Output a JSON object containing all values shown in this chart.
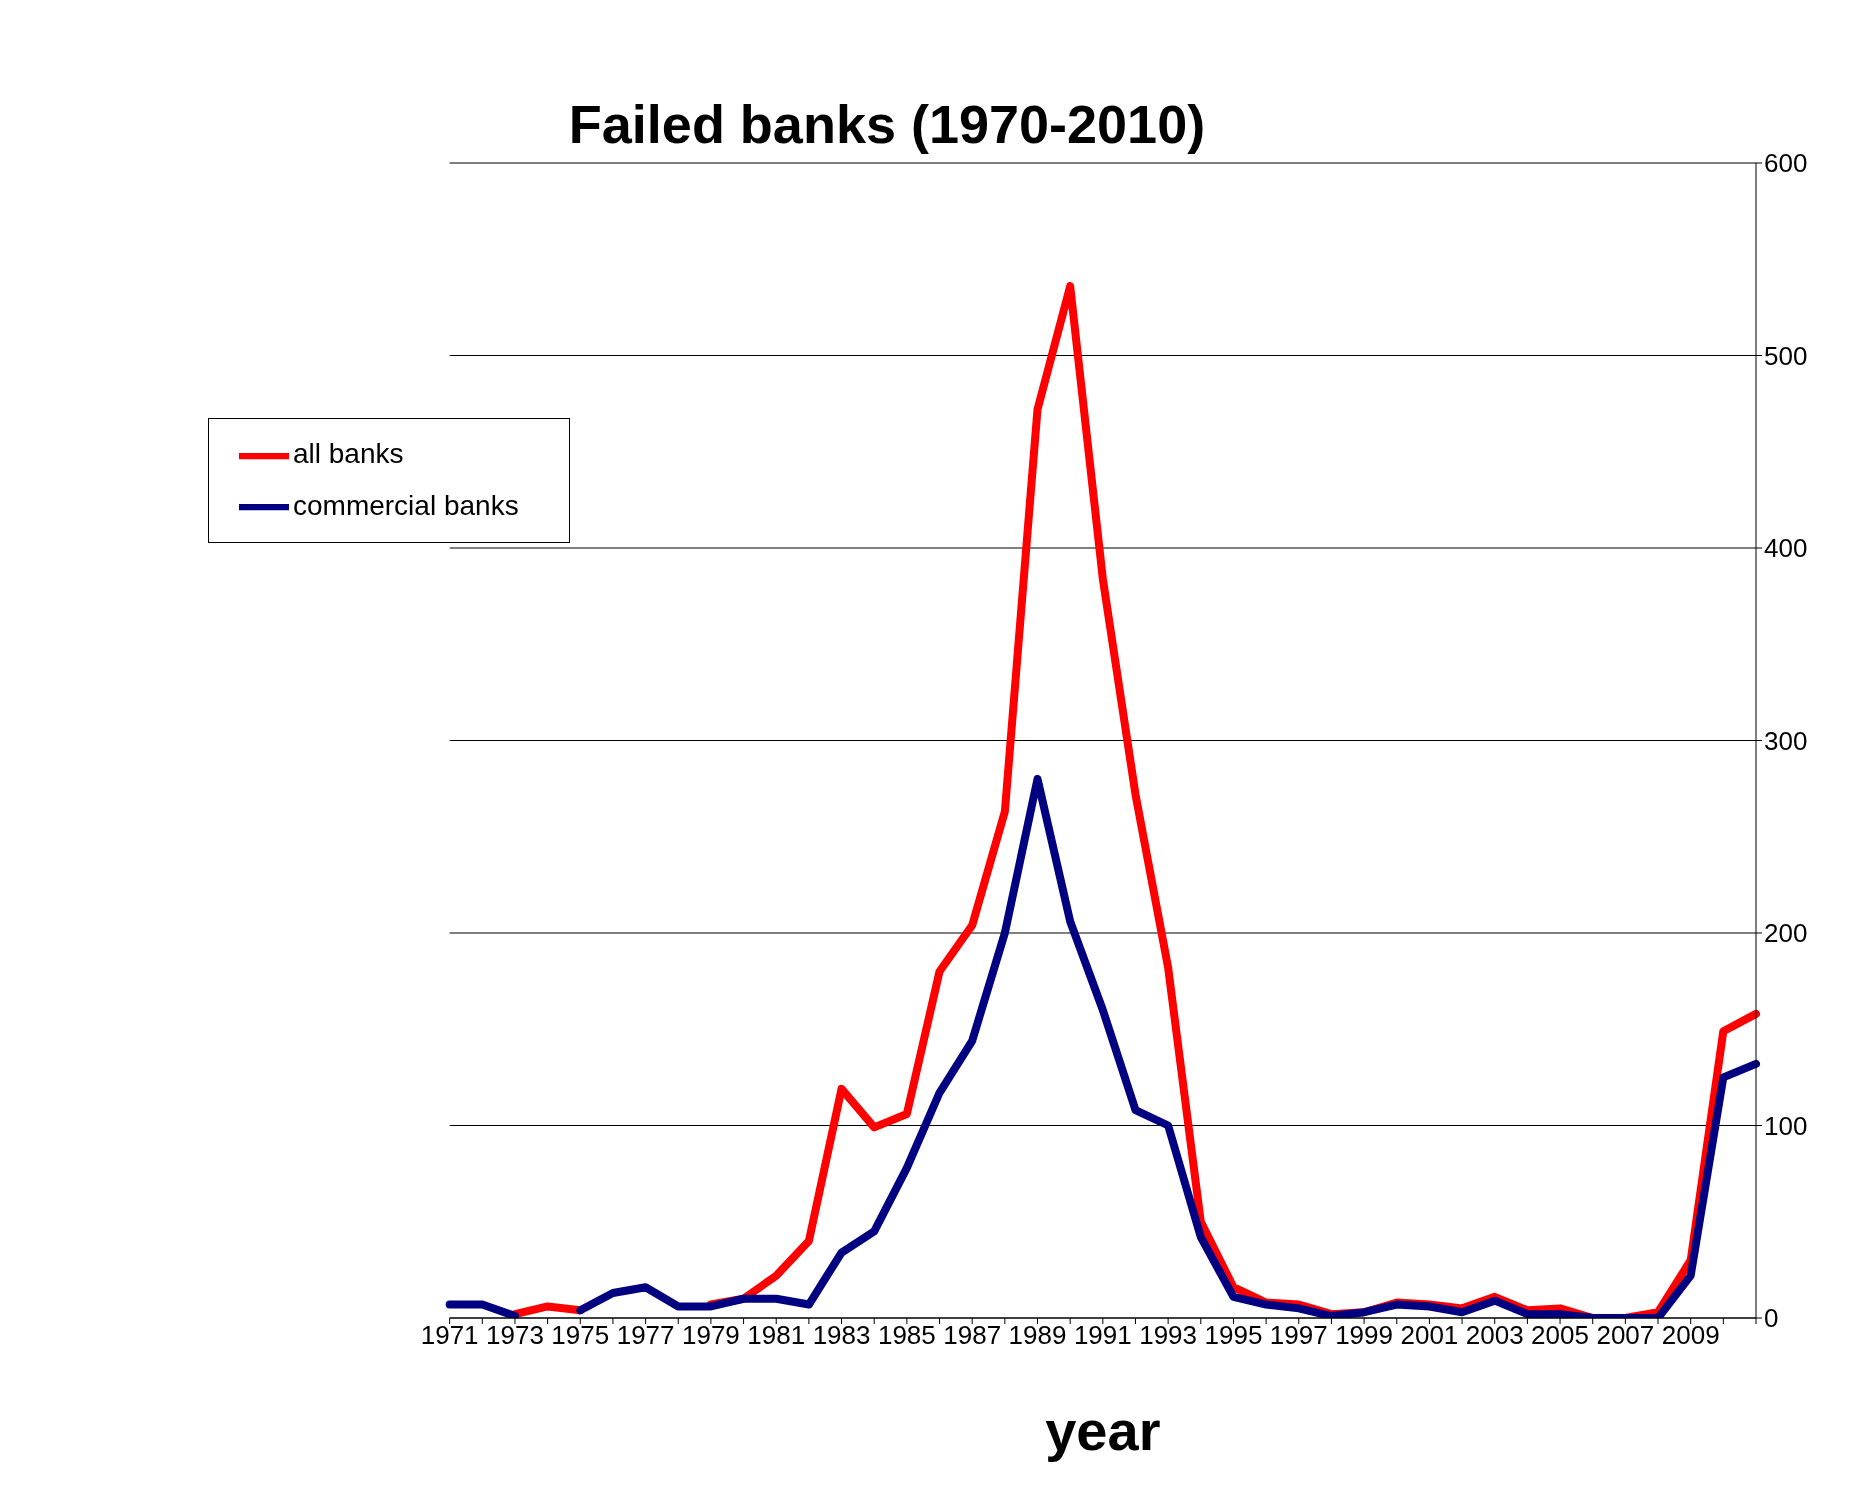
{
  "chart_data": {
    "type": "line",
    "title": "Failed banks (1970-2010)",
    "xlabel": "year",
    "categories": [
      "1971",
      null,
      "1973",
      null,
      "1975",
      null,
      "1977",
      null,
      "1979",
      null,
      "1981",
      null,
      "1983",
      null,
      "1985",
      null,
      "1987",
      null,
      "1989",
      null,
      "1991",
      null,
      "1993",
      null,
      "1995",
      null,
      "1997",
      null,
      "1999",
      null,
      "2001",
      null,
      "2003",
      null,
      "2005",
      null,
      "2007",
      null,
      "2009",
      null,
      null
    ],
    "series": [
      {
        "name": "all banks",
        "color": "#ff0000",
        "values": [
          null,
          null,
          2,
          6,
          4,
          null,
          null,
          null,
          7,
          10,
          22,
          40,
          119,
          99,
          106,
          180,
          204,
          263,
          472,
          536,
          384,
          272,
          182,
          50,
          16,
          8,
          7,
          2,
          3,
          8,
          7,
          5,
          11,
          4,
          5,
          0,
          0,
          3,
          30,
          149,
          158
        ]
      },
      {
        "name": "commercial banks",
        "color": "#000080",
        "values": [
          7,
          7,
          1,
          null,
          4,
          13,
          16,
          6,
          6,
          10,
          10,
          7,
          34,
          45,
          78,
          117,
          144,
          200,
          280,
          206,
          160,
          108,
          100,
          42,
          11,
          7,
          5,
          1,
          3,
          7,
          6,
          3,
          9,
          2,
          2,
          0,
          0,
          0,
          22,
          125,
          132
        ]
      }
    ],
    "ylim": [
      0,
      600
    ],
    "yticks": [
      0,
      100,
      200,
      300,
      400,
      500,
      600
    ],
    "grid": "y",
    "legend": "top left",
    "marker": "none",
    "line_style": "solid"
  }
}
